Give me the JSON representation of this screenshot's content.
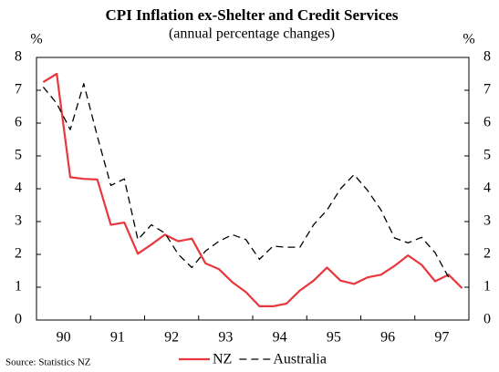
{
  "chart_data": {
    "type": "line",
    "title": "CPI Inflation ex-Shelter and Credit Services",
    "subtitle": "(annual percentage changes)",
    "y_unit": "%",
    "source": "Source: Statistics NZ",
    "categories": [
      null,
      "90",
      null,
      null,
      null,
      "91",
      null,
      null,
      null,
      "92",
      null,
      null,
      null,
      "93",
      null,
      null,
      null,
      "94",
      null,
      null,
      null,
      "95",
      null,
      null,
      null,
      "96",
      null,
      null,
      null,
      "97",
      null,
      null
    ],
    "series": [
      {
        "name": "NZ",
        "color": "#e8383d",
        "dash": false,
        "values": [
          7.25,
          7.5,
          4.35,
          4.3,
          4.28,
          2.9,
          2.97,
          2.02,
          2.3,
          2.6,
          2.4,
          2.48,
          1.73,
          1.55,
          1.15,
          0.85,
          0.42,
          0.42,
          0.5,
          0.9,
          1.2,
          1.6,
          1.2,
          1.1,
          1.3,
          1.38,
          1.65,
          1.97,
          1.68,
          1.18,
          1.38,
          0.97
        ]
      },
      {
        "name": "Australia",
        "color": "#000000",
        "dash": true,
        "values": [
          7.1,
          6.6,
          5.8,
          7.2,
          5.6,
          4.1,
          4.3,
          2.45,
          2.9,
          2.65,
          2.0,
          1.6,
          2.1,
          2.4,
          2.6,
          2.45,
          1.85,
          2.25,
          2.22,
          2.22,
          2.9,
          3.35,
          4.0,
          4.43,
          3.95,
          3.35,
          2.5,
          2.35,
          2.52,
          2.05,
          1.3,
          null
        ]
      }
    ],
    "ylim": [
      0,
      8
    ],
    "yticks": [
      0,
      1,
      2,
      3,
      4,
      5,
      6,
      7,
      8
    ],
    "y2lim": [
      0,
      8
    ],
    "y2ticks": [
      0,
      1,
      2,
      3,
      4,
      5,
      6,
      7,
      8
    ],
    "grid": false
  }
}
